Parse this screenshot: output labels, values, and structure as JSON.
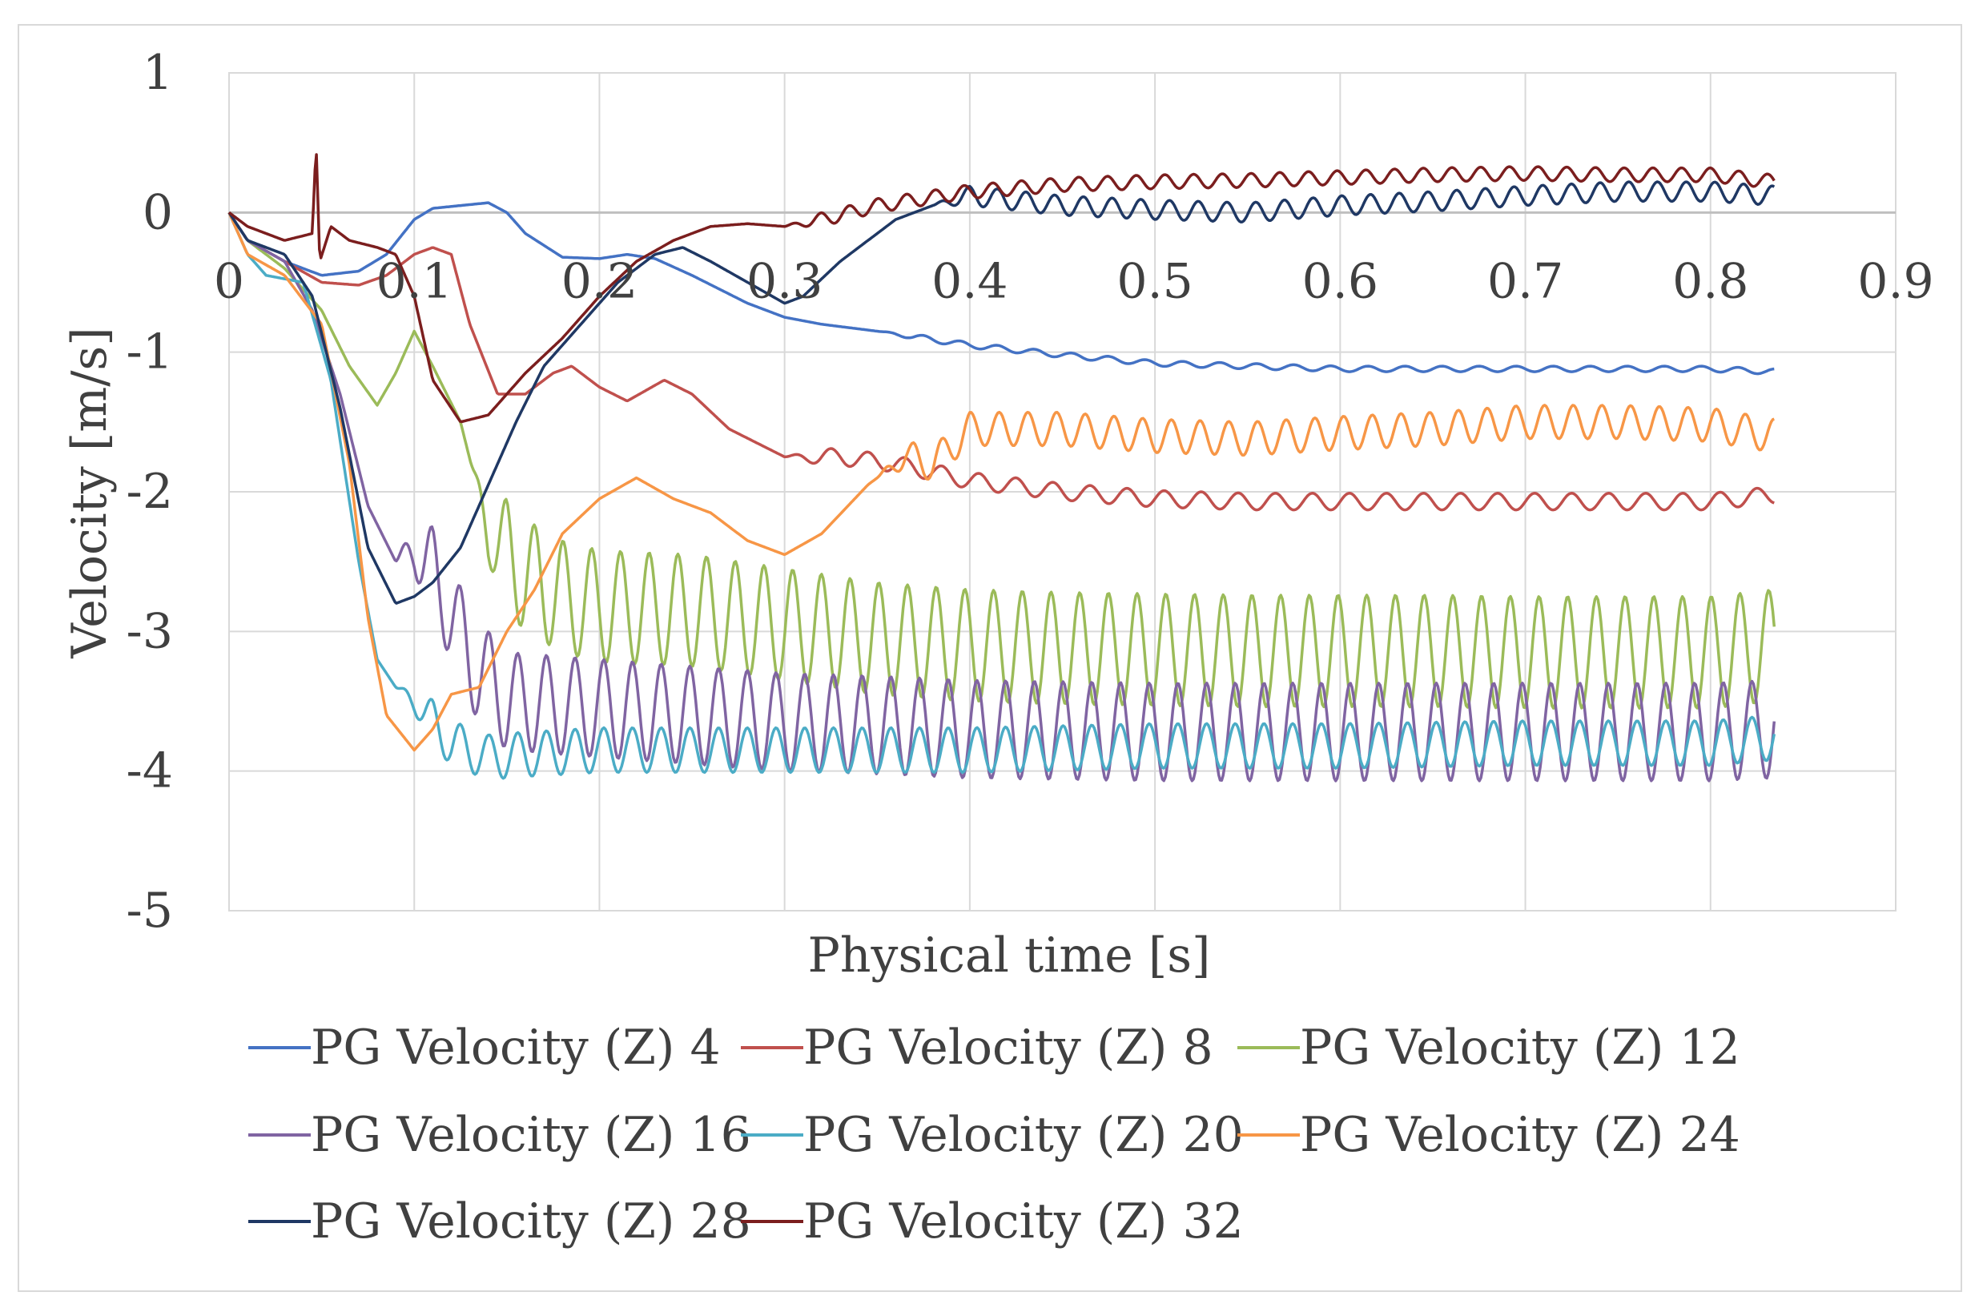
{
  "chart_data": {
    "type": "line",
    "title": "",
    "xlabel": "Physical time [s]",
    "ylabel": "Velocity  [m/s]",
    "xlim": [
      0,
      0.9
    ],
    "ylim": [
      -5,
      1
    ],
    "x_ticks": [
      "0",
      "0.1",
      "0.2",
      "0.3",
      "0.4",
      "0.5",
      "0.6",
      "0.7",
      "0.8",
      "0.9"
    ],
    "y_ticks": [
      "1",
      "0",
      "-1",
      "-2",
      "-3",
      "-4",
      "-5"
    ],
    "grid": true,
    "legend_position": "bottom",
    "series": [
      {
        "name": "PG Velocity (Z) 4",
        "color": "#4472c4",
        "points": [
          [
            0,
            0
          ],
          [
            0.01,
            -0.2
          ],
          [
            0.03,
            -0.35
          ],
          [
            0.05,
            -0.45
          ],
          [
            0.07,
            -0.42
          ],
          [
            0.085,
            -0.3
          ],
          [
            0.1,
            -0.05
          ],
          [
            0.11,
            0.03
          ],
          [
            0.125,
            0.05
          ],
          [
            0.14,
            0.07
          ],
          [
            0.15,
            0.0
          ],
          [
            0.16,
            -0.15
          ],
          [
            0.18,
            -0.32
          ],
          [
            0.2,
            -0.33
          ],
          [
            0.215,
            -0.3
          ],
          [
            0.23,
            -0.33
          ],
          [
            0.25,
            -0.45
          ],
          [
            0.28,
            -0.65
          ],
          [
            0.3,
            -0.75
          ],
          [
            0.32,
            -0.8
          ],
          [
            0.35,
            -0.85
          ],
          [
            0.4,
            -0.95
          ],
          [
            0.45,
            -1.02
          ],
          [
            0.5,
            -1.08
          ],
          [
            0.55,
            -1.1
          ],
          [
            0.6,
            -1.12
          ],
          [
            0.65,
            -1.12
          ],
          [
            0.7,
            -1.12
          ],
          [
            0.75,
            -1.12
          ],
          [
            0.8,
            -1.12
          ],
          [
            0.835,
            -1.14
          ]
        ],
        "osc": {
          "start": 0.35,
          "amp": 0.02,
          "period": 0.02
        }
      },
      {
        "name": "PG Velocity (Z) 8",
        "color": "#c0504d",
        "points": [
          [
            0,
            0
          ],
          [
            0.01,
            -0.2
          ],
          [
            0.03,
            -0.35
          ],
          [
            0.05,
            -0.5
          ],
          [
            0.07,
            -0.52
          ],
          [
            0.085,
            -0.45
          ],
          [
            0.1,
            -0.3
          ],
          [
            0.11,
            -0.25
          ],
          [
            0.12,
            -0.3
          ],
          [
            0.13,
            -0.8
          ],
          [
            0.145,
            -1.3
          ],
          [
            0.16,
            -1.3
          ],
          [
            0.175,
            -1.15
          ],
          [
            0.185,
            -1.1
          ],
          [
            0.2,
            -1.25
          ],
          [
            0.215,
            -1.35
          ],
          [
            0.235,
            -1.2
          ],
          [
            0.25,
            -1.3
          ],
          [
            0.27,
            -1.55
          ],
          [
            0.3,
            -1.75
          ],
          [
            0.33,
            -1.75
          ],
          [
            0.36,
            -1.8
          ],
          [
            0.4,
            -1.92
          ],
          [
            0.45,
            -2.0
          ],
          [
            0.5,
            -2.05
          ],
          [
            0.55,
            -2.07
          ],
          [
            0.6,
            -2.07
          ],
          [
            0.65,
            -2.07
          ],
          [
            0.7,
            -2.07
          ],
          [
            0.75,
            -2.07
          ],
          [
            0.8,
            -2.07
          ],
          [
            0.835,
            -2.02
          ]
        ],
        "osc": {
          "start": 0.3,
          "amp": 0.06,
          "period": 0.02
        }
      },
      {
        "name": "PG Velocity (Z) 12",
        "color": "#9bbb59",
        "points": [
          [
            0,
            0
          ],
          [
            0.01,
            -0.2
          ],
          [
            0.03,
            -0.4
          ],
          [
            0.05,
            -0.7
          ],
          [
            0.065,
            -1.1
          ],
          [
            0.08,
            -1.38
          ],
          [
            0.09,
            -1.15
          ],
          [
            0.1,
            -0.85
          ],
          [
            0.11,
            -1.1
          ],
          [
            0.125,
            -1.5
          ],
          [
            0.14,
            -2.3
          ],
          [
            0.16,
            -2.6
          ],
          [
            0.18,
            -2.75
          ],
          [
            0.2,
            -2.82
          ],
          [
            0.25,
            -2.85
          ],
          [
            0.3,
            -2.95
          ],
          [
            0.35,
            -3.05
          ],
          [
            0.4,
            -3.1
          ],
          [
            0.45,
            -3.12
          ],
          [
            0.5,
            -3.13
          ],
          [
            0.55,
            -3.14
          ],
          [
            0.6,
            -3.14
          ],
          [
            0.65,
            -3.14
          ],
          [
            0.7,
            -3.15
          ],
          [
            0.75,
            -3.15
          ],
          [
            0.8,
            -3.15
          ],
          [
            0.835,
            -3.1
          ]
        ],
        "osc": {
          "start": 0.13,
          "amp": 0.4,
          "period": 0.0155
        }
      },
      {
        "name": "PG Velocity (Z) 16",
        "color": "#8064a2",
        "points": [
          [
            0,
            0
          ],
          [
            0.01,
            -0.2
          ],
          [
            0.03,
            -0.35
          ],
          [
            0.045,
            -0.7
          ],
          [
            0.06,
            -1.3
          ],
          [
            0.075,
            -2.1
          ],
          [
            0.09,
            -2.5
          ],
          [
            0.1,
            -2.4
          ],
          [
            0.115,
            -2.7
          ],
          [
            0.13,
            -3.2
          ],
          [
            0.15,
            -3.5
          ],
          [
            0.2,
            -3.55
          ],
          [
            0.25,
            -3.6
          ],
          [
            0.3,
            -3.65
          ],
          [
            0.35,
            -3.67
          ],
          [
            0.4,
            -3.7
          ],
          [
            0.5,
            -3.72
          ],
          [
            0.6,
            -3.72
          ],
          [
            0.7,
            -3.72
          ],
          [
            0.8,
            -3.72
          ],
          [
            0.835,
            -3.7
          ]
        ],
        "osc": {
          "start": 0.09,
          "amp": 0.35,
          "period": 0.0155
        }
      },
      {
        "name": "PG Velocity (Z) 20",
        "color": "#4bacc6",
        "points": [
          [
            0,
            0
          ],
          [
            0.01,
            -0.3
          ],
          [
            0.02,
            -0.45
          ],
          [
            0.04,
            -0.5
          ],
          [
            0.055,
            -1.2
          ],
          [
            0.07,
            -2.5
          ],
          [
            0.08,
            -3.2
          ],
          [
            0.09,
            -3.4
          ],
          [
            0.1,
            -3.5
          ],
          [
            0.12,
            -3.8
          ],
          [
            0.14,
            -3.9
          ],
          [
            0.16,
            -3.88
          ],
          [
            0.2,
            -3.85
          ],
          [
            0.25,
            -3.85
          ],
          [
            0.3,
            -3.85
          ],
          [
            0.4,
            -3.85
          ],
          [
            0.5,
            -3.82
          ],
          [
            0.6,
            -3.82
          ],
          [
            0.7,
            -3.8
          ],
          [
            0.8,
            -3.8
          ],
          [
            0.835,
            -3.76
          ]
        ],
        "osc": {
          "start": 0.09,
          "amp": 0.16,
          "period": 0.0155
        }
      },
      {
        "name": "PG Velocity (Z) 24",
        "color": "#f79646",
        "points": [
          [
            0,
            0
          ],
          [
            0.01,
            -0.3
          ],
          [
            0.03,
            -0.45
          ],
          [
            0.05,
            -0.8
          ],
          [
            0.065,
            -1.8
          ],
          [
            0.075,
            -2.9
          ],
          [
            0.085,
            -3.6
          ],
          [
            0.1,
            -3.85
          ],
          [
            0.11,
            -3.7
          ],
          [
            0.12,
            -3.45
          ],
          [
            0.135,
            -3.4
          ],
          [
            0.15,
            -3.0
          ],
          [
            0.165,
            -2.7
          ],
          [
            0.18,
            -2.3
          ],
          [
            0.2,
            -2.05
          ],
          [
            0.22,
            -1.9
          ],
          [
            0.24,
            -2.05
          ],
          [
            0.26,
            -2.15
          ],
          [
            0.28,
            -2.35
          ],
          [
            0.3,
            -2.45
          ],
          [
            0.32,
            -2.3
          ],
          [
            0.345,
            -1.95
          ],
          [
            0.365,
            -1.75
          ],
          [
            0.38,
            -1.8
          ],
          [
            0.4,
            -1.55
          ],
          [
            0.45,
            -1.55
          ],
          [
            0.5,
            -1.6
          ],
          [
            0.55,
            -1.62
          ],
          [
            0.6,
            -1.58
          ],
          [
            0.65,
            -1.55
          ],
          [
            0.7,
            -1.5
          ],
          [
            0.75,
            -1.5
          ],
          [
            0.8,
            -1.52
          ],
          [
            0.835,
            -1.6
          ]
        ],
        "osc": {
          "start": 0.35,
          "amp": 0.12,
          "period": 0.0155
        }
      },
      {
        "name": "PG Velocity (Z) 28",
        "color": "#1f3864",
        "points": [
          [
            0,
            0
          ],
          [
            0.01,
            -0.2
          ],
          [
            0.03,
            -0.3
          ],
          [
            0.045,
            -0.6
          ],
          [
            0.06,
            -1.4
          ],
          [
            0.075,
            -2.4
          ],
          [
            0.09,
            -2.8
          ],
          [
            0.1,
            -2.75
          ],
          [
            0.11,
            -2.65
          ],
          [
            0.125,
            -2.4
          ],
          [
            0.14,
            -1.95
          ],
          [
            0.155,
            -1.5
          ],
          [
            0.17,
            -1.1
          ],
          [
            0.19,
            -0.8
          ],
          [
            0.21,
            -0.5
          ],
          [
            0.23,
            -0.3
          ],
          [
            0.245,
            -0.25
          ],
          [
            0.26,
            -0.35
          ],
          [
            0.28,
            -0.5
          ],
          [
            0.3,
            -0.65
          ],
          [
            0.31,
            -0.6
          ],
          [
            0.33,
            -0.35
          ],
          [
            0.36,
            -0.05
          ],
          [
            0.38,
            0.05
          ],
          [
            0.4,
            0.12
          ],
          [
            0.45,
            0.05
          ],
          [
            0.5,
            0.02
          ],
          [
            0.55,
            0.0
          ],
          [
            0.6,
            0.05
          ],
          [
            0.65,
            0.08
          ],
          [
            0.7,
            0.12
          ],
          [
            0.75,
            0.15
          ],
          [
            0.8,
            0.15
          ],
          [
            0.835,
            0.12
          ]
        ],
        "osc": {
          "start": 0.38,
          "amp": 0.07,
          "period": 0.0155
        }
      },
      {
        "name": "PG Velocity (Z) 32",
        "color": "#7b1e1e",
        "points": [
          [
            0,
            0
          ],
          [
            0.01,
            -0.1
          ],
          [
            0.03,
            -0.2
          ],
          [
            0.045,
            -0.15
          ],
          [
            0.047,
            0.5
          ],
          [
            0.049,
            -0.35
          ],
          [
            0.055,
            -0.1
          ],
          [
            0.065,
            -0.2
          ],
          [
            0.08,
            -0.25
          ],
          [
            0.09,
            -0.3
          ],
          [
            0.1,
            -0.6
          ],
          [
            0.11,
            -1.2
          ],
          [
            0.125,
            -1.5
          ],
          [
            0.14,
            -1.45
          ],
          [
            0.16,
            -1.15
          ],
          [
            0.18,
            -0.9
          ],
          [
            0.2,
            -0.6
          ],
          [
            0.22,
            -0.35
          ],
          [
            0.24,
            -0.2
          ],
          [
            0.26,
            -0.1
          ],
          [
            0.28,
            -0.08
          ],
          [
            0.3,
            -0.1
          ],
          [
            0.32,
            -0.05
          ],
          [
            0.35,
            0.05
          ],
          [
            0.4,
            0.15
          ],
          [
            0.45,
            0.2
          ],
          [
            0.5,
            0.22
          ],
          [
            0.55,
            0.23
          ],
          [
            0.6,
            0.25
          ],
          [
            0.65,
            0.27
          ],
          [
            0.7,
            0.28
          ],
          [
            0.75,
            0.27
          ],
          [
            0.8,
            0.27
          ],
          [
            0.835,
            0.22
          ]
        ],
        "osc": {
          "start": 0.3,
          "amp": 0.05,
          "period": 0.0155
        }
      }
    ]
  }
}
